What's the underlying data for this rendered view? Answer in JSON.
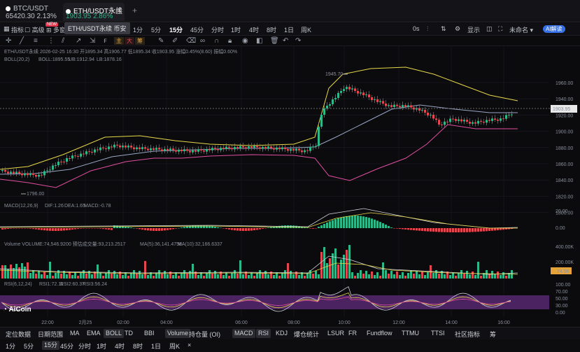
{
  "tabs": [
    {
      "symbol": "BTC/USDT",
      "price": "65420.30",
      "change": "2.13%"
    },
    {
      "symbol": "ETH/USDT永续",
      "price": "1903.95",
      "change": "2.86%"
    }
  ],
  "tooltip": "ETH/USDT永续 币安",
  "toolbar": {
    "indicators": "指标",
    "advanced": "高级",
    "layout": "多窗",
    "new_badge": "NEW",
    "intervals": [
      "1分",
      "5分",
      "15分",
      "45分",
      "分时",
      "1时",
      "4时",
      "8时",
      "1日",
      "周K"
    ],
    "active_interval": "15分",
    "countdown": "0s",
    "show": "显示",
    "unlabeled": "未命名",
    "ai_button": "AI解读"
  },
  "drawbar": {
    "tags": [
      "主",
      "大",
      "筹"
    ]
  },
  "legend": {
    "main": "ETH/USDT永续  2026-02-25 16:30  开1895.34  高1906.77  低1895.34  收1903.95  涨幅0.45%(8.60)  振幅0.60%",
    "boll": "BOLL(20,2)",
    "boll_mb": "BOLL:1895.55",
    "boll_ub": "UB:1912.94",
    "boll_lb": "LB:1878.16",
    "macd": "MACD(12,26,9)",
    "macd_dif": "DIF:1.26",
    "macd_dea": "DEA:1.65",
    "macd_val": "MACD:-0.78",
    "vol": "Volume  VOLUME:74,546.9200  预估成交量:93,213.2517",
    "vol_ma5": "MA(5):36,141.4758",
    "vol_ma10": "MA(10):32,166.6337",
    "rsi": "RSI(6,12,24)",
    "rsi1": "RSI1:72.11",
    "rsi2": "RSI2:60.37",
    "rsi3": "RSI3:56.24"
  },
  "price_axis": [
    "1960.00",
    "1940.00",
    "1920.00",
    "1900.00",
    "1880.00",
    "1860.00",
    "1840.00",
    "1820.00",
    "1800.00"
  ],
  "current_price": "1903.95",
  "annotations": {
    "high": "1945.70",
    "low": "1796.00"
  },
  "macd_axis": [
    "20.00",
    "0.00"
  ],
  "vol_axis": [
    "400.00K",
    "200.00K",
    "74.5K"
  ],
  "rsi_axis": [
    "100.00",
    "70.00",
    "50.00",
    "30.00",
    "0.00"
  ],
  "time_axis": [
    "22:00",
    "2月25",
    "02:00",
    "04:00",
    "06:00",
    "08:00",
    "10:00",
    "12:00",
    "14:00",
    "16:00"
  ],
  "logo": "AiCoin",
  "bottom_row1": [
    "定位数据",
    "日期范围",
    "MA",
    "EMA",
    "BOLL",
    "TD",
    "BBI",
    "Volume",
    "持仓量 (OI)",
    "MACD",
    "RSI",
    "KDJ",
    "爆仓统计",
    "LSUR",
    "FR",
    "Fundflow",
    "TTMU",
    "TTSI",
    "社区指标",
    "筹"
  ],
  "bottom_row2": [
    "1分",
    "5分",
    "15分",
    "45分",
    "分时",
    "1时",
    "4时",
    "8时",
    "1日",
    "周K"
  ],
  "colors": {
    "up": "#2eb88a",
    "down": "#e5454f",
    "upper": "#e8d84a",
    "mid": "#9aa6c6",
    "lower": "#e04ea0",
    "rsi_band": "#4a2360"
  }
}
